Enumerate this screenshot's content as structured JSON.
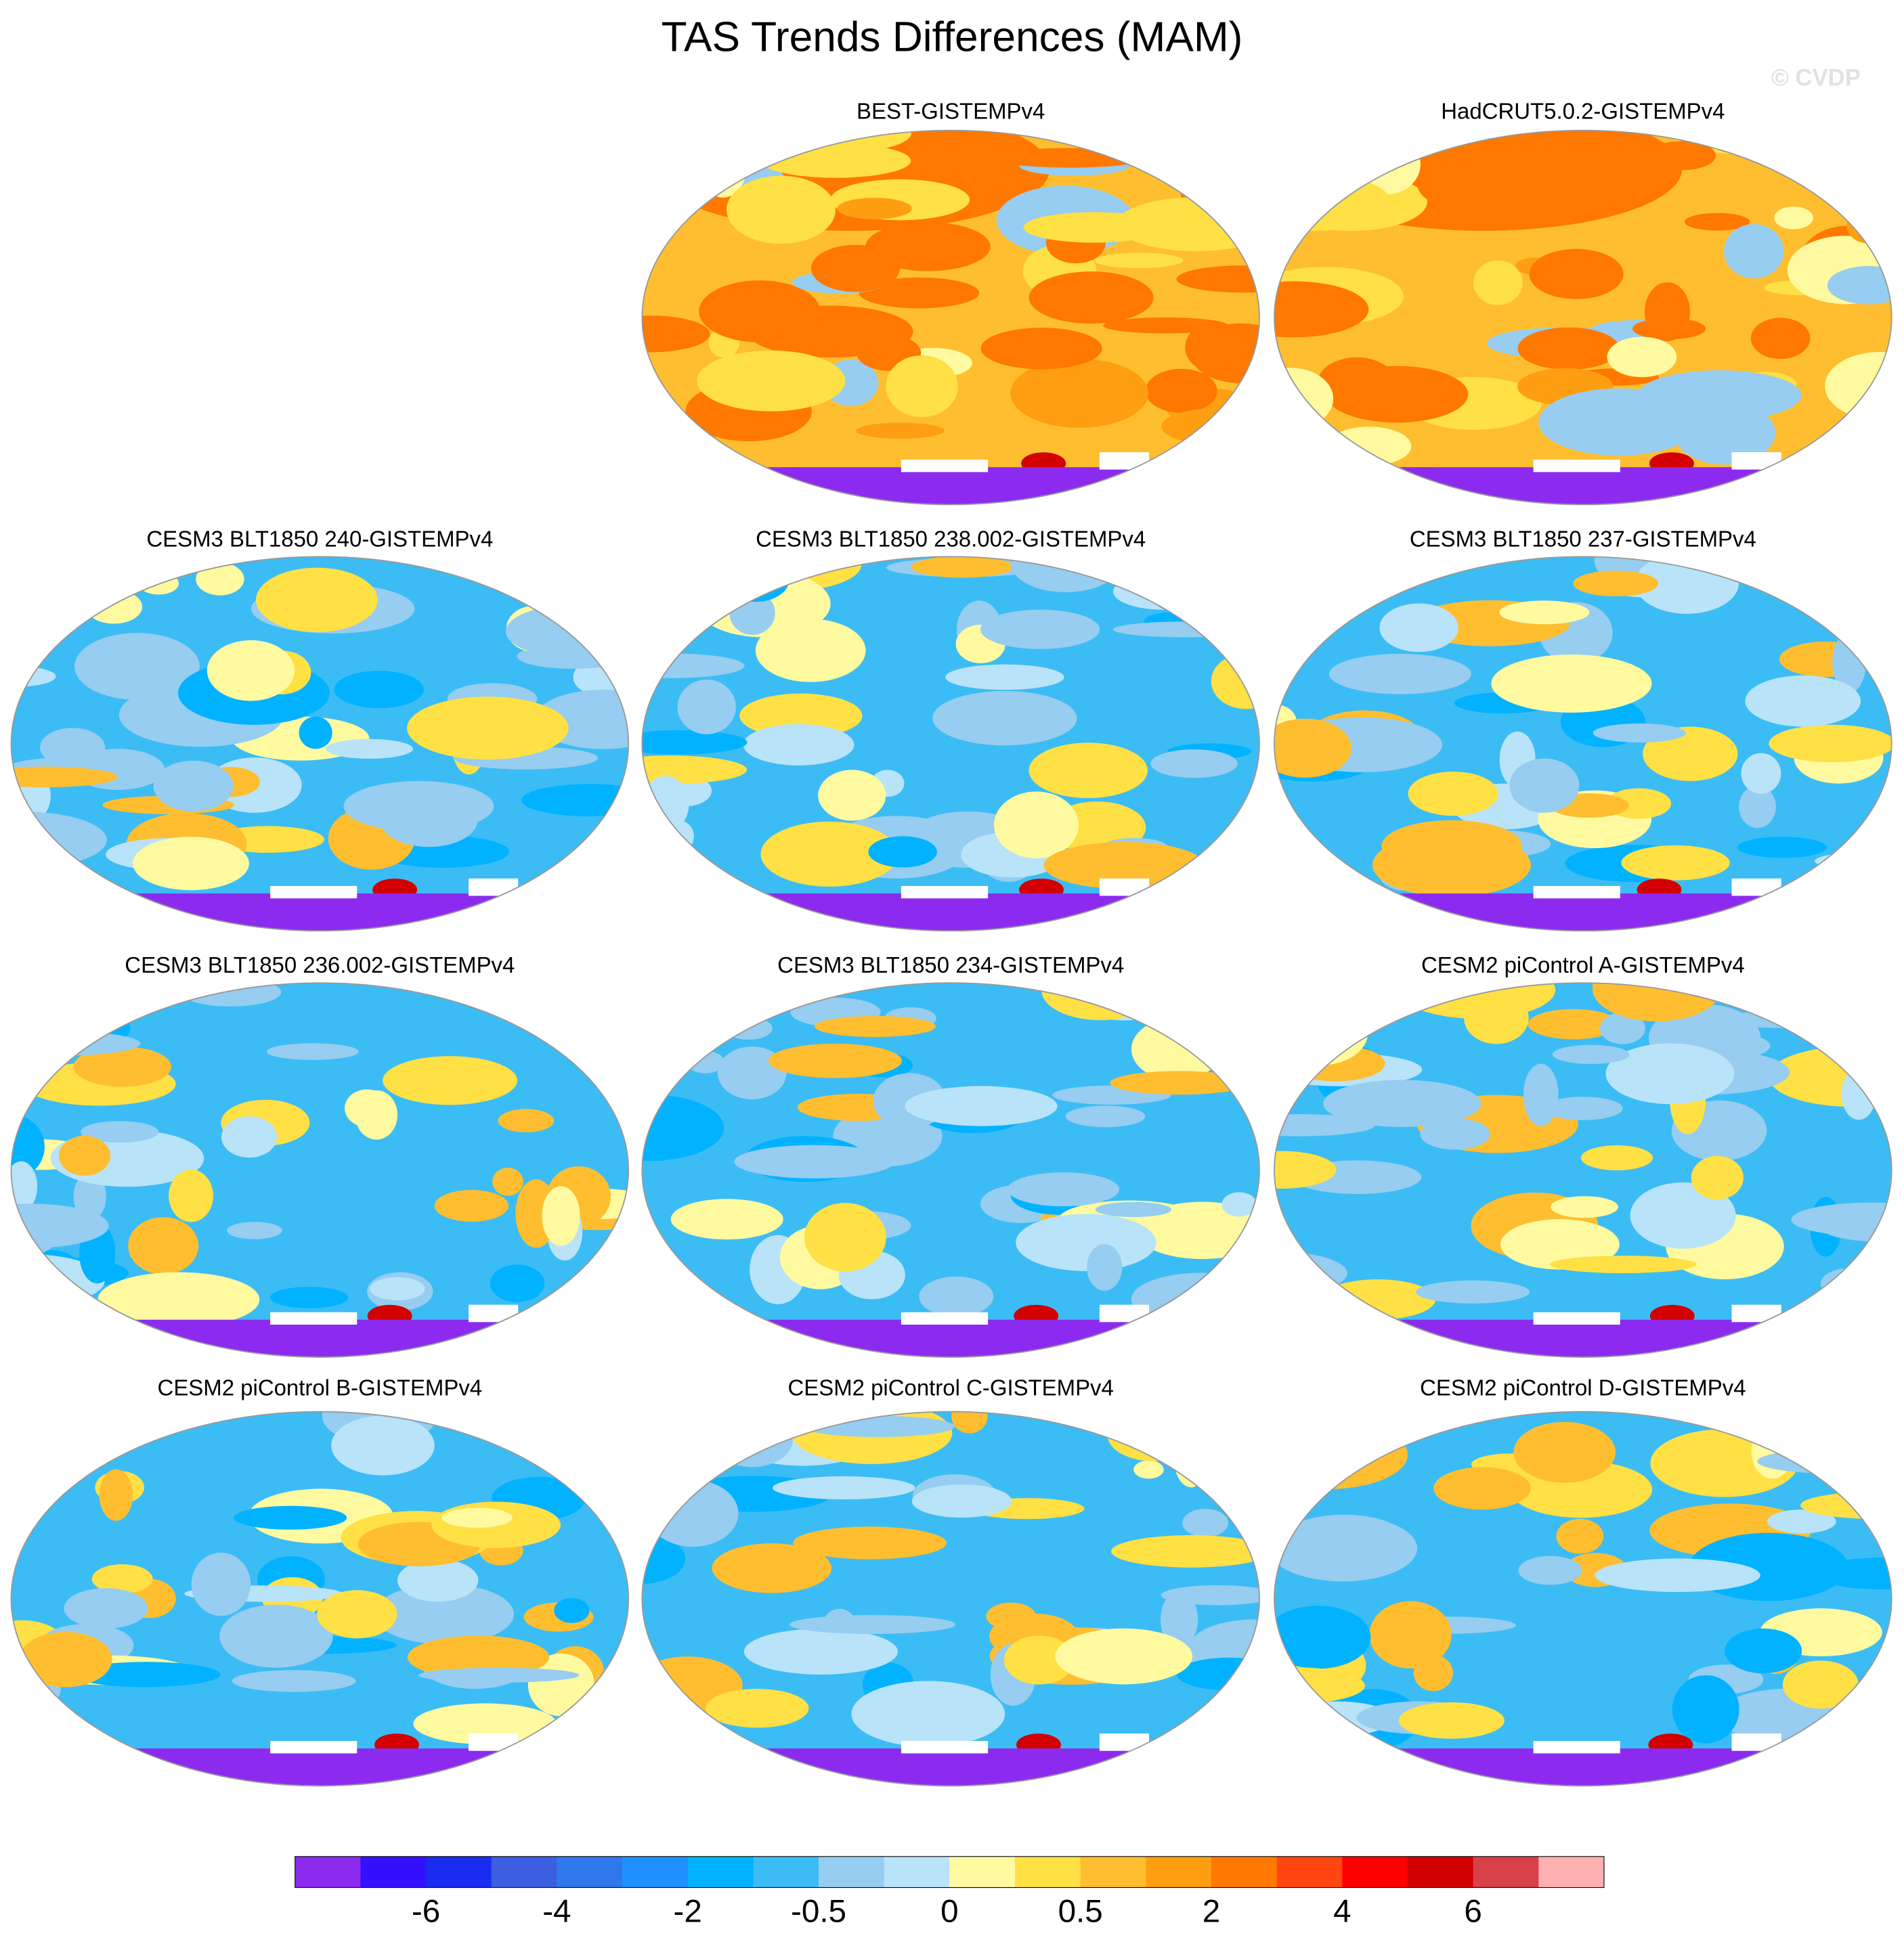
{
  "title": "TAS Trends Differences (MAM)",
  "watermark": "© CVDP",
  "panels": [
    {
      "title": "BEST-GISTEMPv4"
    },
    {
      "title": "HadCRUT5.0.2-GISTEMPv4"
    },
    {
      "title": "CESM3 BLT1850 240-GISTEMPv4"
    },
    {
      "title": "CESM3 BLT1850 238.002-GISTEMPv4"
    },
    {
      "title": "CESM3 BLT1850 237-GISTEMPv4"
    },
    {
      "title": "CESM3 BLT1850 236.002-GISTEMPv4"
    },
    {
      "title": "CESM3 BLT1850 234-GISTEMPv4"
    },
    {
      "title": "CESM2 piControl A-GISTEMPv4"
    },
    {
      "title": "CESM2 piControl B-GISTEMPv4"
    },
    {
      "title": "CESM2 piControl C-GISTEMPv4"
    },
    {
      "title": "CESM2 piControl D-GISTEMPv4"
    }
  ],
  "colorbar": {
    "colors": [
      "#8c2bef",
      "#3311ff",
      "#1a2cf0",
      "#3c5ee0",
      "#2f78ea",
      "#1e90ff",
      "#00b2ff",
      "#3cbcf4",
      "#96cdf0",
      "#b9e3f8",
      "#fffaa0",
      "#ffe045",
      "#ffbe30",
      "#ff9e10",
      "#ff7800",
      "#ff4610",
      "#ff0000",
      "#d20000",
      "#d8404a",
      "#ffb0b0"
    ],
    "labels": [
      -6,
      -4,
      -2,
      -0.5,
      0,
      0.5,
      2,
      4,
      6
    ]
  }
}
